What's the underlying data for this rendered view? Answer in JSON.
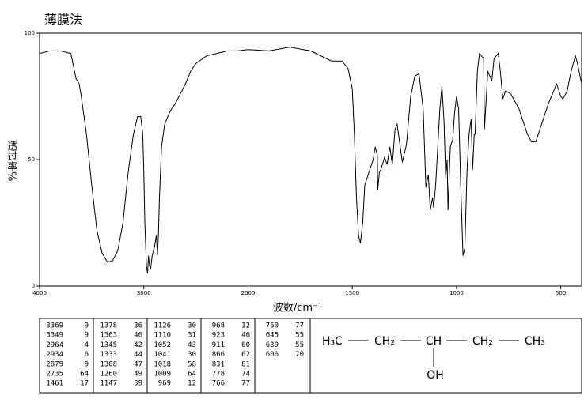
{
  "chart_data": {
    "type": "line",
    "title": "薄膜法",
    "ylabel": "透过率%",
    "xlabel": "波数/cm⁻¹",
    "color": "#000000",
    "xlim": [
      4000,
      400
    ],
    "x_break": 2000,
    "ylim": [
      0,
      100
    ],
    "xticks": [
      4000,
      3000,
      2000,
      1500,
      1000,
      500
    ],
    "yticks": [
      0,
      50,
      100
    ],
    "x": [
      4000,
      3900,
      3800,
      3700,
      3680,
      3650,
      3620,
      3600,
      3550,
      3500,
      3450,
      3400,
      3350,
      3300,
      3250,
      3200,
      3150,
      3100,
      3060,
      3030,
      3010,
      3000,
      2990,
      2975,
      2964,
      2955,
      2945,
      2934,
      2920,
      2900,
      2879,
      2870,
      2860,
      2850,
      2830,
      2800,
      2760,
      2735,
      2700,
      2650,
      2600,
      2550,
      2500,
      2400,
      2300,
      2200,
      2100,
      2000,
      1900,
      1800,
      1700,
      1600,
      1550,
      1520,
      1500,
      1490,
      1480,
      1470,
      1461,
      1450,
      1440,
      1420,
      1400,
      1390,
      1380,
      1378,
      1370,
      1363,
      1345,
      1333,
      1320,
      1308,
      1295,
      1285,
      1270,
      1260,
      1240,
      1220,
      1200,
      1180,
      1160,
      1147,
      1135,
      1126,
      1115,
      1110,
      1100,
      1080,
      1070,
      1060,
      1052,
      1045,
      1041,
      1030,
      1018,
      1010,
      1000,
      990,
      980,
      969,
      960,
      950,
      940,
      930,
      923,
      915,
      911,
      900,
      890,
      870,
      866,
      850,
      840,
      831,
      820,
      800,
      790,
      778,
      766,
      760,
      740,
      700,
      660,
      640,
      620,
      600,
      560,
      530,
      520,
      500,
      490,
      470,
      450,
      430,
      420,
      400
    ],
    "values": [
      92,
      93,
      93,
      92,
      88,
      82,
      80,
      75,
      60,
      40,
      22,
      13,
      9.5,
      10,
      14,
      25,
      45,
      60,
      67,
      67,
      60,
      45,
      25,
      8,
      5,
      12,
      8,
      7,
      12,
      15,
      20,
      12,
      20,
      35,
      55,
      64,
      68,
      70,
      72,
      76,
      80,
      85,
      88,
      91,
      92,
      93,
      93,
      93.5,
      93,
      94.5,
      93,
      89,
      89,
      86,
      78,
      60,
      35,
      20,
      17,
      25,
      40,
      45,
      50,
      55,
      52,
      38,
      45,
      46,
      51,
      48,
      55,
      48,
      62,
      64,
      55,
      49,
      56,
      75,
      83,
      84,
      70,
      39,
      44,
      30,
      35,
      31,
      40,
      70,
      79,
      65,
      43,
      50,
      30,
      55,
      58,
      68,
      75,
      70,
      40,
      12,
      15,
      45,
      60,
      66,
      46,
      60,
      60,
      85,
      92,
      90,
      62,
      85,
      83,
      81,
      90,
      92,
      85,
      74,
      77,
      77,
      76,
      70,
      60,
      57,
      57,
      62,
      72,
      78,
      80,
      75,
      74,
      77,
      85,
      91,
      88,
      80
    ],
    "peak_table": [
      [
        3369,
        9
      ],
      [
        3349,
        9
      ],
      [
        2964,
        4
      ],
      [
        2934,
        6
      ],
      [
        2879,
        9
      ],
      [
        2735,
        64
      ],
      [
        1461,
        17
      ],
      [
        1378,
        36
      ],
      [
        1363,
        46
      ],
      [
        1345,
        42
      ],
      [
        1333,
        44
      ],
      [
        1308,
        47
      ],
      [
        1260,
        49
      ],
      [
        1147,
        39
      ],
      [
        1126,
        30
      ],
      [
        1110,
        31
      ],
      [
        1052,
        43
      ],
      [
        1041,
        30
      ],
      [
        1018,
        58
      ],
      [
        1009,
        64
      ],
      [
        969,
        12
      ],
      [
        968,
        12
      ],
      [
        923,
        46
      ],
      [
        911,
        60
      ],
      [
        866,
        62
      ],
      [
        831,
        81
      ],
      [
        778,
        74
      ],
      [
        766,
        77
      ],
      [
        760,
        77
      ],
      [
        645,
        55
      ],
      [
        639,
        55
      ],
      [
        606,
        70
      ]
    ],
    "structure": {
      "groups": [
        "H₃C",
        "CH₂",
        "CH",
        "CH₂",
        "CH₃"
      ],
      "substituent": "OH"
    }
  }
}
